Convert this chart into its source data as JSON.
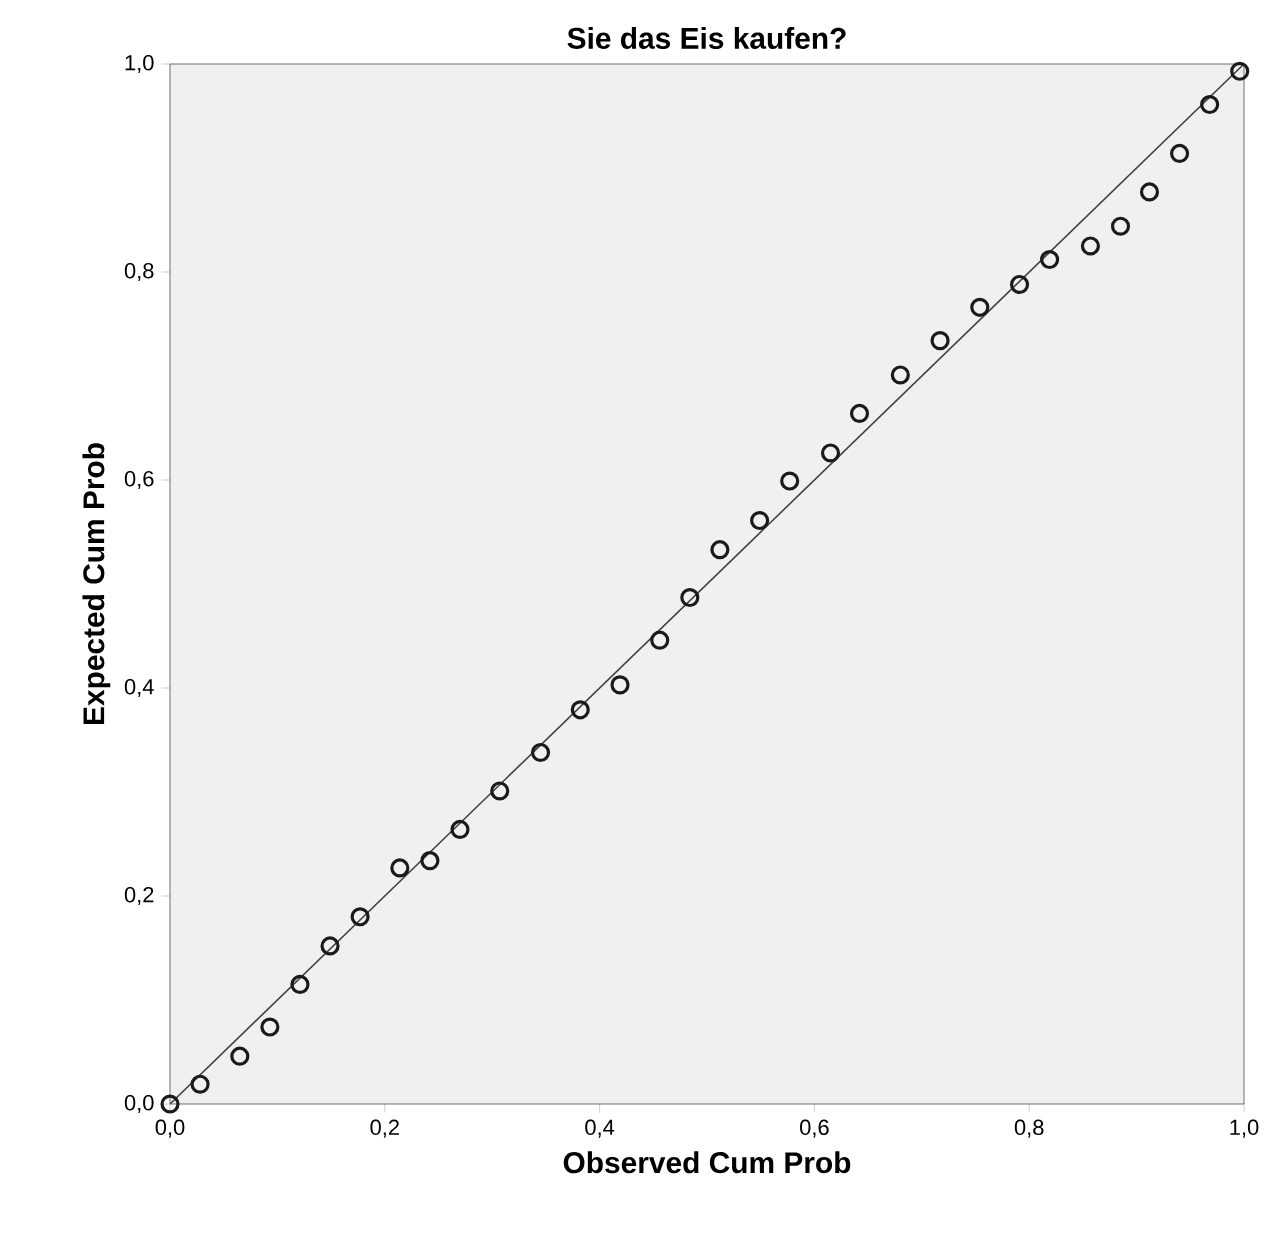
{
  "chart_data": {
    "type": "scatter",
    "title": "Sie das Eis kaufen?",
    "xlabel": "Observed Cum Prob",
    "ylabel": "Expected Cum Prob",
    "xlim": [
      0,
      1
    ],
    "ylim": [
      0,
      1
    ],
    "xticks": [
      {
        "value": 0,
        "label": "0,0"
      },
      {
        "value": 0.2,
        "label": "0,2"
      },
      {
        "value": 0.4,
        "label": "0,4"
      },
      {
        "value": 0.6,
        "label": "0,6"
      },
      {
        "value": 0.8,
        "label": "0,8"
      },
      {
        "value": 1,
        "label": "1,0"
      }
    ],
    "yticks": [
      {
        "value": 0,
        "label": "0,0"
      },
      {
        "value": 0.2,
        "label": "0,2"
      },
      {
        "value": 0.4,
        "label": "0,4"
      },
      {
        "value": 0.6,
        "label": "0,6"
      },
      {
        "value": 0.8,
        "label": "0,8"
      },
      {
        "value": 1,
        "label": "1,0"
      }
    ],
    "grid": false,
    "series": [
      {
        "marker": "circle",
        "color": "#1a1a1a",
        "x": [
          0.0,
          0.028,
          0.065,
          0.093,
          0.121,
          0.149,
          0.177,
          0.214,
          0.242,
          0.27,
          0.307,
          0.345,
          0.382,
          0.419,
          0.456,
          0.484,
          0.512,
          0.549,
          0.577,
          0.615,
          0.642,
          0.68,
          0.717,
          0.754,
          0.791,
          0.819,
          0.857,
          0.885,
          0.912,
          0.94,
          0.968,
          0.996
        ],
        "values": [
          0.0,
          0.019,
          0.046,
          0.074,
          0.115,
          0.152,
          0.18,
          0.227,
          0.234,
          0.264,
          0.301,
          0.338,
          0.379,
          0.403,
          0.446,
          0.487,
          0.533,
          0.561,
          0.599,
          0.626,
          0.664,
          0.701,
          0.734,
          0.766,
          0.788,
          0.812,
          0.825,
          0.844,
          0.877,
          0.914,
          0.961,
          0.993
        ]
      },
      {
        "type": "line",
        "marker": "none",
        "color": "#404040",
        "x": [
          0,
          1
        ],
        "values": [
          0,
          1
        ]
      }
    ]
  }
}
